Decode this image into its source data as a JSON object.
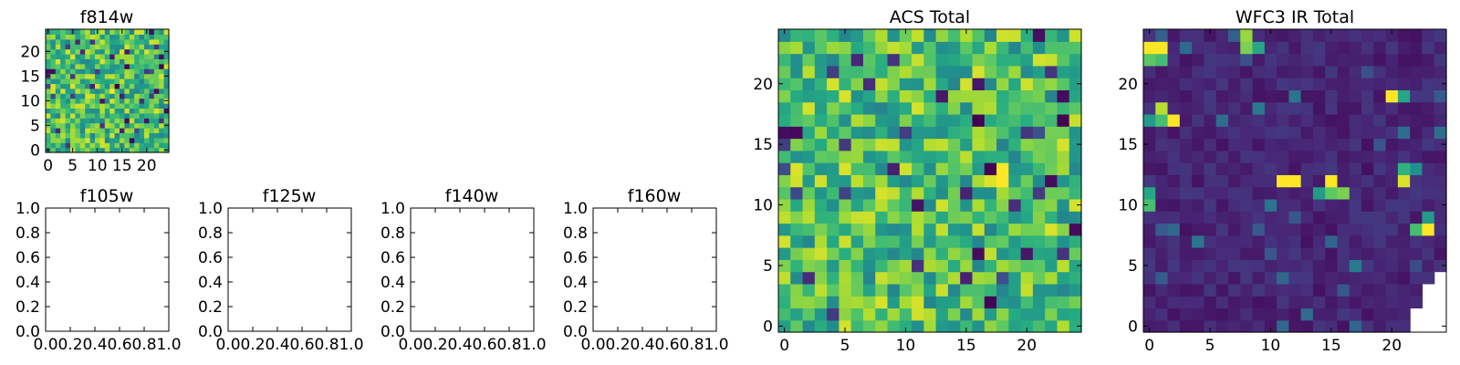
{
  "chart_data": [
    {
      "type": "heatmap",
      "title": "f814w",
      "xlabel": "",
      "ylabel": "",
      "xlim": [
        -0.5,
        24.5
      ],
      "ylim": [
        -0.5,
        24.5
      ],
      "xticks": [
        0,
        5,
        10,
        15,
        20
      ],
      "yticks": [
        0,
        5,
        10,
        15,
        20
      ],
      "grid_size": [
        25,
        25
      ],
      "colormap": "viridis",
      "value_range": [
        0,
        1
      ],
      "seed": 7,
      "hotspots": [
        {
          "x": 14,
          "y": 13,
          "v": 0.0
        },
        {
          "x": 13,
          "y": 12,
          "v": 1.0
        }
      ]
    },
    {
      "type": "empty",
      "title": "f105w",
      "xlim": [
        0.0,
        1.0
      ],
      "ylim": [
        0.0,
        1.0
      ],
      "xticks": [
        "0.0",
        "0.2",
        "0.4",
        "0.6",
        "0.8",
        "1.0"
      ],
      "yticks": [
        "0.0",
        "0.2",
        "0.4",
        "0.6",
        "0.8",
        "1.0"
      ]
    },
    {
      "type": "empty",
      "title": "f125w",
      "xlim": [
        0.0,
        1.0
      ],
      "ylim": [
        0.0,
        1.0
      ],
      "xticks": [
        "0.0",
        "0.2",
        "0.4",
        "0.6",
        "0.8",
        "1.0"
      ],
      "yticks": [
        "0.0",
        "0.2",
        "0.4",
        "0.6",
        "0.8",
        "1.0"
      ]
    },
    {
      "type": "empty",
      "title": "f140w",
      "xlim": [
        0.0,
        1.0
      ],
      "ylim": [
        0.0,
        1.0
      ],
      "xticks": [
        "0.0",
        "0.2",
        "0.4",
        "0.6",
        "0.8",
        "1.0"
      ],
      "yticks": [
        "0.0",
        "0.2",
        "0.4",
        "0.6",
        "0.8",
        "1.0"
      ]
    },
    {
      "type": "empty",
      "title": "f160w",
      "xlim": [
        0.0,
        1.0
      ],
      "ylim": [
        0.0,
        1.0
      ],
      "xticks": [
        "0.0",
        "0.2",
        "0.4",
        "0.6",
        "0.8",
        "1.0"
      ],
      "yticks": [
        "0.0",
        "0.2",
        "0.4",
        "0.6",
        "0.8",
        "1.0"
      ]
    },
    {
      "type": "heatmap",
      "title": "ACS Total",
      "xlim": [
        -0.5,
        24.5
      ],
      "ylim": [
        -0.5,
        24.5
      ],
      "xticks": [
        0,
        5,
        10,
        15,
        20
      ],
      "yticks": [
        0,
        5,
        10,
        15,
        20
      ],
      "grid_size": [
        25,
        25
      ],
      "colormap": "viridis",
      "value_range": [
        0,
        1
      ],
      "seed": 7,
      "hotspots": [
        {
          "x": 17,
          "y": 13,
          "v": 0.0
        },
        {
          "x": 18,
          "y": 13,
          "v": 1.0
        },
        {
          "x": 18,
          "y": 12,
          "v": 1.0
        },
        {
          "x": 17,
          "y": 12,
          "v": 0.95
        }
      ]
    },
    {
      "type": "heatmap",
      "title": "WFC3 IR Total",
      "xlim": [
        -0.5,
        24.5
      ],
      "ylim": [
        -0.5,
        24.5
      ],
      "xticks": [
        0,
        5,
        10,
        15,
        20
      ],
      "yticks": [
        0,
        5,
        10,
        15,
        20
      ],
      "grid_size": [
        25,
        25
      ],
      "colormap": "viridis",
      "value_range": [
        0,
        1
      ],
      "background_level": 0.05,
      "seed": 11,
      "hotspots": [
        {
          "x": 0,
          "y": 23,
          "v": 1.0
        },
        {
          "x": 1,
          "y": 23,
          "v": 1.0
        },
        {
          "x": 0,
          "y": 22,
          "v": 0.75
        },
        {
          "x": 1,
          "y": 22,
          "v": 0.7
        },
        {
          "x": 8,
          "y": 24,
          "v": 0.85
        },
        {
          "x": 8,
          "y": 23,
          "v": 0.8
        },
        {
          "x": 9,
          "y": 23,
          "v": 0.6
        },
        {
          "x": 1,
          "y": 18,
          "v": 0.9
        },
        {
          "x": 1,
          "y": 17,
          "v": 0.7
        },
        {
          "x": 2,
          "y": 17,
          "v": 1.0
        },
        {
          "x": 0,
          "y": 17,
          "v": 0.55
        },
        {
          "x": 20,
          "y": 19,
          "v": 1.0
        },
        {
          "x": 21,
          "y": 19,
          "v": 0.6
        },
        {
          "x": 11,
          "y": 12,
          "v": 1.0
        },
        {
          "x": 12,
          "y": 12,
          "v": 1.0
        },
        {
          "x": 14,
          "y": 11,
          "v": 0.55
        },
        {
          "x": 15,
          "y": 12,
          "v": 1.0
        },
        {
          "x": 15,
          "y": 11,
          "v": 0.75
        },
        {
          "x": 16,
          "y": 11,
          "v": 0.8
        },
        {
          "x": 0,
          "y": 11,
          "v": 0.6
        },
        {
          "x": 0,
          "y": 10,
          "v": 0.7
        },
        {
          "x": 21,
          "y": 13,
          "v": 0.65
        },
        {
          "x": 21,
          "y": 12,
          "v": 0.95
        },
        {
          "x": 22,
          "y": 13,
          "v": 0.5
        },
        {
          "x": 22,
          "y": 8,
          "v": 0.7
        },
        {
          "x": 23,
          "y": 8,
          "v": 1.0
        },
        {
          "x": 23,
          "y": 9,
          "v": 0.55
        }
      ],
      "masked": [
        {
          "x": 24,
          "y": 4
        },
        {
          "x": 24,
          "y": 3
        },
        {
          "x": 23,
          "y": 3
        },
        {
          "x": 24,
          "y": 2
        },
        {
          "x": 23,
          "y": 2
        },
        {
          "x": 24,
          "y": 1
        },
        {
          "x": 23,
          "y": 1
        },
        {
          "x": 22,
          "y": 1
        },
        {
          "x": 24,
          "y": 0
        },
        {
          "x": 23,
          "y": 0
        },
        {
          "x": 22,
          "y": 0
        }
      ]
    }
  ]
}
